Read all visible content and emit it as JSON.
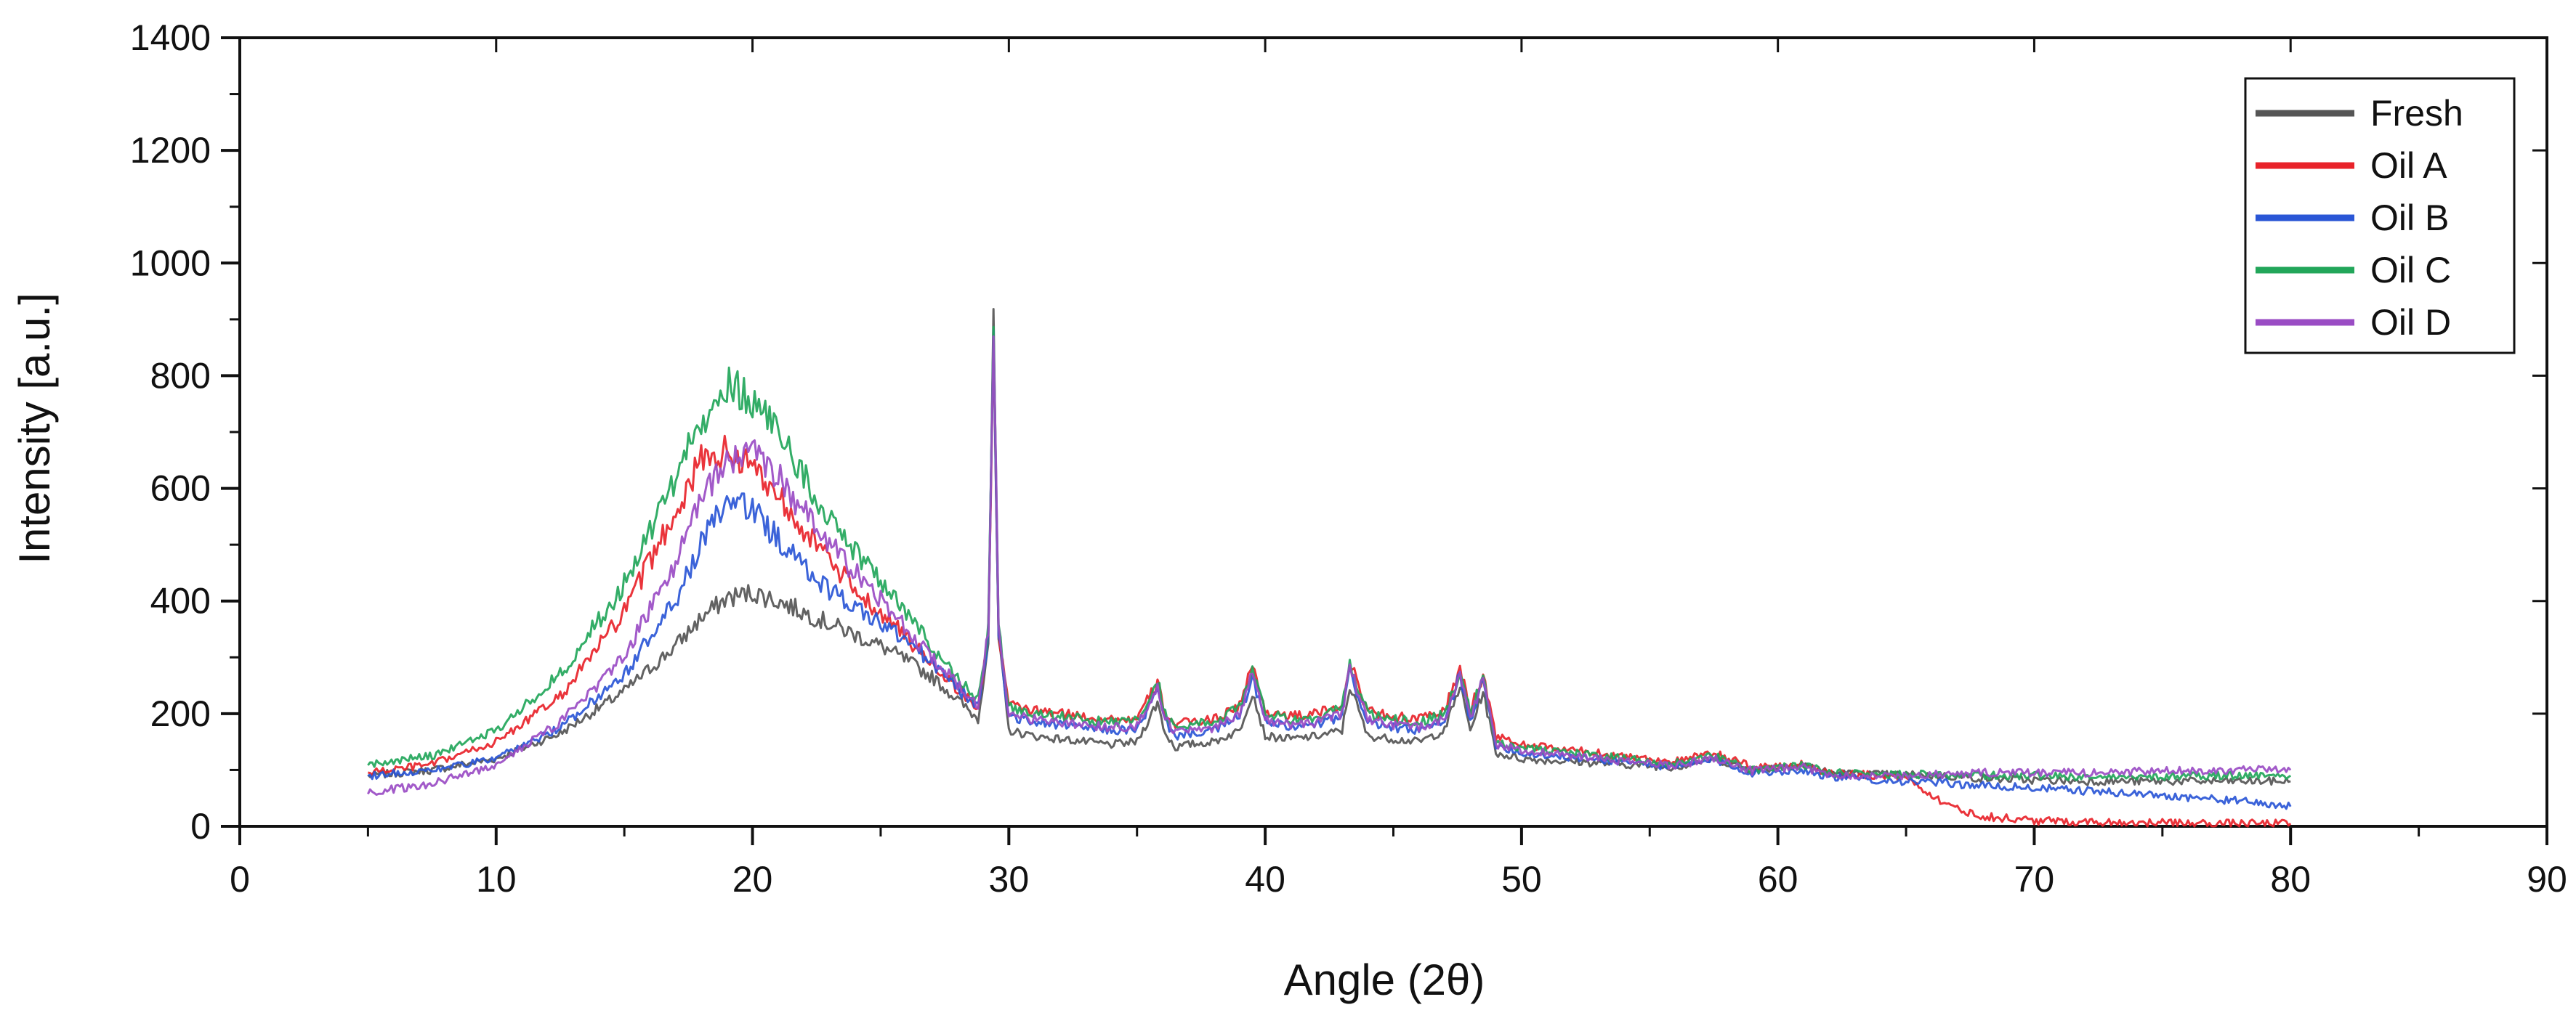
{
  "chart_data": {
    "type": "line",
    "title": "",
    "xlabel": "Angle (2θ)",
    "ylabel": "Intensity [a.u.]",
    "xlim": [
      0,
      90
    ],
    "ylim": [
      0,
      1400
    ],
    "x_ticks": [
      0,
      10,
      20,
      30,
      40,
      50,
      60,
      70,
      80,
      90
    ],
    "y_ticks": [
      0,
      200,
      400,
      600,
      800,
      1000,
      1200,
      1400
    ],
    "x_tick_labels": [
      "0",
      "10",
      "20",
      "30",
      "40",
      "50",
      "60",
      "70",
      "80",
      "90"
    ],
    "y_tick_labels": [
      "0",
      "200",
      "400",
      "600",
      "800",
      "1000",
      "1200",
      "1400"
    ],
    "grid": false,
    "legend_position": "top-right",
    "x": [
      5,
      7.5,
      10,
      12.5,
      15,
      17,
      18,
      19,
      20,
      21,
      22,
      23,
      24,
      25,
      26,
      27,
      28,
      28.8,
      29.2,
      29.4,
      29.6,
      30,
      31,
      32,
      33,
      34,
      35,
      35.8,
      36.1,
      36.5,
      37,
      38,
      39,
      39.5,
      40,
      41,
      42,
      43,
      43.3,
      44,
      45,
      46,
      47,
      47.6,
      48,
      48.5,
      49,
      50,
      52,
      54,
      56,
      57.5,
      59,
      61,
      62,
      64,
      65,
      66,
      67,
      68,
      70,
      72,
      75,
      78,
      80
    ],
    "series": [
      {
        "name": "Fresh",
        "color": "#555555",
        "values": [
          90,
          100,
          120,
          165,
          240,
          320,
          370,
          405,
          415,
          400,
          380,
          360,
          340,
          320,
          295,
          265,
          225,
          190,
          330,
          880,
          330,
          170,
          160,
          155,
          150,
          145,
          150,
          220,
          165,
          140,
          145,
          150,
          170,
          240,
          160,
          155,
          160,
          170,
          250,
          160,
          155,
          150,
          170,
          250,
          170,
          240,
          130,
          120,
          115,
          110,
          105,
          120,
          100,
          110,
          95,
          92,
          92,
          90,
          88,
          85,
          82,
          80,
          80,
          80,
          80
        ]
      },
      {
        "name": "Oil A",
        "color": "#e8232a",
        "values": [
          95,
          110,
          150,
          230,
          380,
          560,
          650,
          665,
          640,
          590,
          530,
          470,
          420,
          380,
          335,
          290,
          245,
          210,
          340,
          880,
          340,
          215,
          205,
          200,
          195,
          190,
          190,
          255,
          200,
          180,
          185,
          190,
          215,
          285,
          205,
          195,
          200,
          215,
          290,
          205,
          195,
          190,
          205,
          280,
          205,
          270,
          160,
          145,
          135,
          125,
          115,
          130,
          105,
          110,
          95,
          90,
          88,
          55,
          30,
          18,
          10,
          8,
          6,
          5,
          5
        ]
      },
      {
        "name": "Oil B",
        "color": "#2a56d6",
        "values": [
          90,
          100,
          120,
          175,
          270,
          400,
          500,
          580,
          560,
          510,
          460,
          420,
          390,
          360,
          330,
          290,
          245,
          210,
          340,
          880,
          340,
          195,
          185,
          180,
          175,
          170,
          172,
          240,
          185,
          160,
          165,
          170,
          195,
          265,
          185,
          175,
          180,
          195,
          275,
          185,
          175,
          170,
          185,
          270,
          190,
          255,
          145,
          130,
          122,
          115,
          105,
          118,
          95,
          100,
          88,
          82,
          80,
          78,
          75,
          72,
          68,
          63,
          55,
          45,
          35
        ]
      },
      {
        "name": "Oil C",
        "color": "#22a65a",
        "values": [
          110,
          125,
          170,
          270,
          430,
          620,
          720,
          785,
          760,
          700,
          620,
          550,
          490,
          440,
          380,
          320,
          260,
          225,
          350,
          900,
          350,
          210,
          200,
          195,
          190,
          185,
          188,
          260,
          200,
          175,
          180,
          185,
          210,
          280,
          200,
          190,
          195,
          210,
          285,
          200,
          190,
          185,
          200,
          275,
          200,
          265,
          150,
          140,
          130,
          120,
          112,
          125,
          100,
          108,
          95,
          92,
          92,
          92,
          90,
          90,
          90,
          88,
          88,
          90,
          90
        ]
      },
      {
        "name": "Oil D",
        "color": "#9a4cc4",
        "values": [
          60,
          75,
          110,
          185,
          300,
          470,
          580,
          650,
          660,
          620,
          560,
          500,
          450,
          400,
          350,
          300,
          250,
          215,
          345,
          890,
          345,
          200,
          190,
          185,
          180,
          175,
          178,
          250,
          190,
          165,
          170,
          175,
          200,
          275,
          190,
          180,
          185,
          200,
          280,
          190,
          180,
          175,
          190,
          270,
          195,
          260,
          145,
          135,
          125,
          115,
          108,
          122,
          98,
          105,
          92,
          90,
          90,
          92,
          92,
          95,
          95,
          95,
          98,
          100,
          100
        ]
      }
    ]
  }
}
